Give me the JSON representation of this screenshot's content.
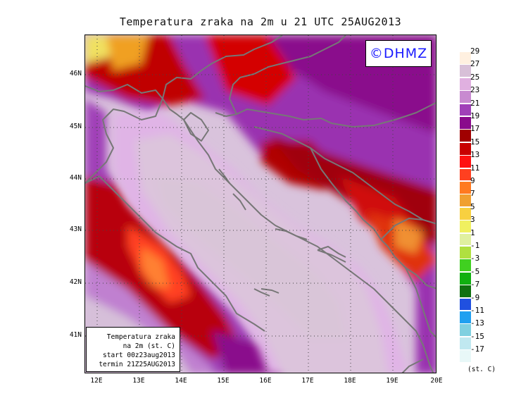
{
  "title": "Temperatura zraka na 2m u 21 UTC 25AUG2013",
  "copyright": "©DHMZ",
  "info_box": {
    "line1": "Temperatura zraka",
    "line2": "na 2m (st. C)",
    "line3": "start 00z23aug2013",
    "line4": "termin 21Z25AUG2013"
  },
  "axes": {
    "lat_labels": [
      "46N",
      "45N",
      "44N",
      "43N",
      "42N",
      "41N"
    ],
    "lon_labels": [
      "12E",
      "13E",
      "14E",
      "15E",
      "16E",
      "17E",
      "18E",
      "19E",
      "20E"
    ]
  },
  "legend": {
    "units": "(st. C)",
    "labels": [
      "29",
      "27",
      "25",
      "23",
      "21",
      "19",
      "17",
      "15",
      "13",
      "11",
      "9",
      "7",
      "5",
      "3",
      "1",
      "-1",
      "-3",
      "-5",
      "-7",
      "-9",
      "-11",
      "-13",
      "-15",
      "-17"
    ],
    "colors": [
      "#fff0e0",
      "#d8c0d8",
      "#e0b0e0",
      "#c88ad0",
      "#a040b8",
      "#8a0a8c",
      "#a00000",
      "#c80000",
      "#ff1010",
      "#ff4020",
      "#ff7a20",
      "#f0a030",
      "#f8d040",
      "#f0f060",
      "#e0f0a0",
      "#b0e040",
      "#40d020",
      "#10b010",
      "#107010",
      "#2050e0",
      "#20a0f0",
      "#80d0e0",
      "#c0e8f0",
      "#e8f8f8"
    ]
  }
}
